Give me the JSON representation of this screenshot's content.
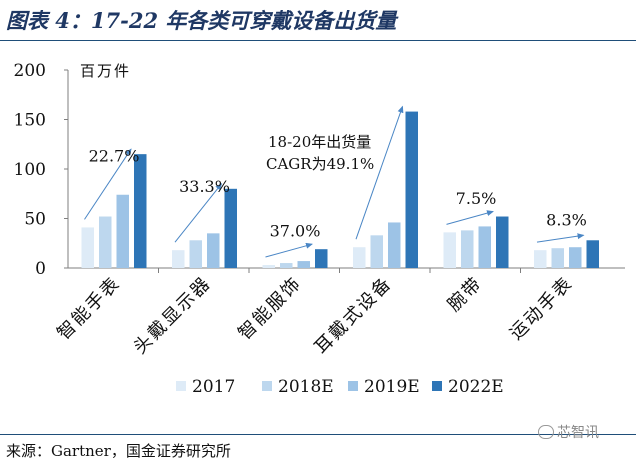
{
  "header": {
    "title": "图表 4：17-22 年各类可穿戴设备出货量"
  },
  "footer": {
    "source": "来源：Gartner，国金证券研究所",
    "watermark": "芯智讯"
  },
  "colors": {
    "s2017": "#deebf7",
    "s2018": "#bdd7ee",
    "s2019": "#9dc3e6",
    "s2022": "#2e75b6",
    "arrow": "#4a86c5",
    "title": "#1f3864"
  },
  "chart_data": {
    "type": "bar",
    "unit_label": "百万件",
    "categories": [
      "智能手表",
      "头戴显示器",
      "智能服饰",
      "耳戴式设备",
      "腕带",
      "运动手表"
    ],
    "series": [
      {
        "name": "2017",
        "values": [
          41,
          18,
          3,
          21,
          36,
          18
        ]
      },
      {
        "name": "2018E",
        "values": [
          52,
          28,
          5,
          33,
          38,
          20
        ]
      },
      {
        "name": "2019E",
        "values": [
          74,
          35,
          7,
          46,
          42,
          21
        ]
      },
      {
        "name": "2022E",
        "values": [
          115,
          80,
          19,
          158,
          52,
          28
        ]
      }
    ],
    "cagr_labels": [
      "22.7%",
      "33.3%",
      "37.0%",
      "",
      "7.5%",
      "8.3%"
    ],
    "annotation": {
      "line1": "18-20年出货量",
      "line2": "CAGR为49.1%"
    },
    "ylim": [
      0,
      200
    ],
    "yticks": [
      0,
      50,
      100,
      150,
      200
    ],
    "grid": false,
    "legend_position": "bottom"
  }
}
